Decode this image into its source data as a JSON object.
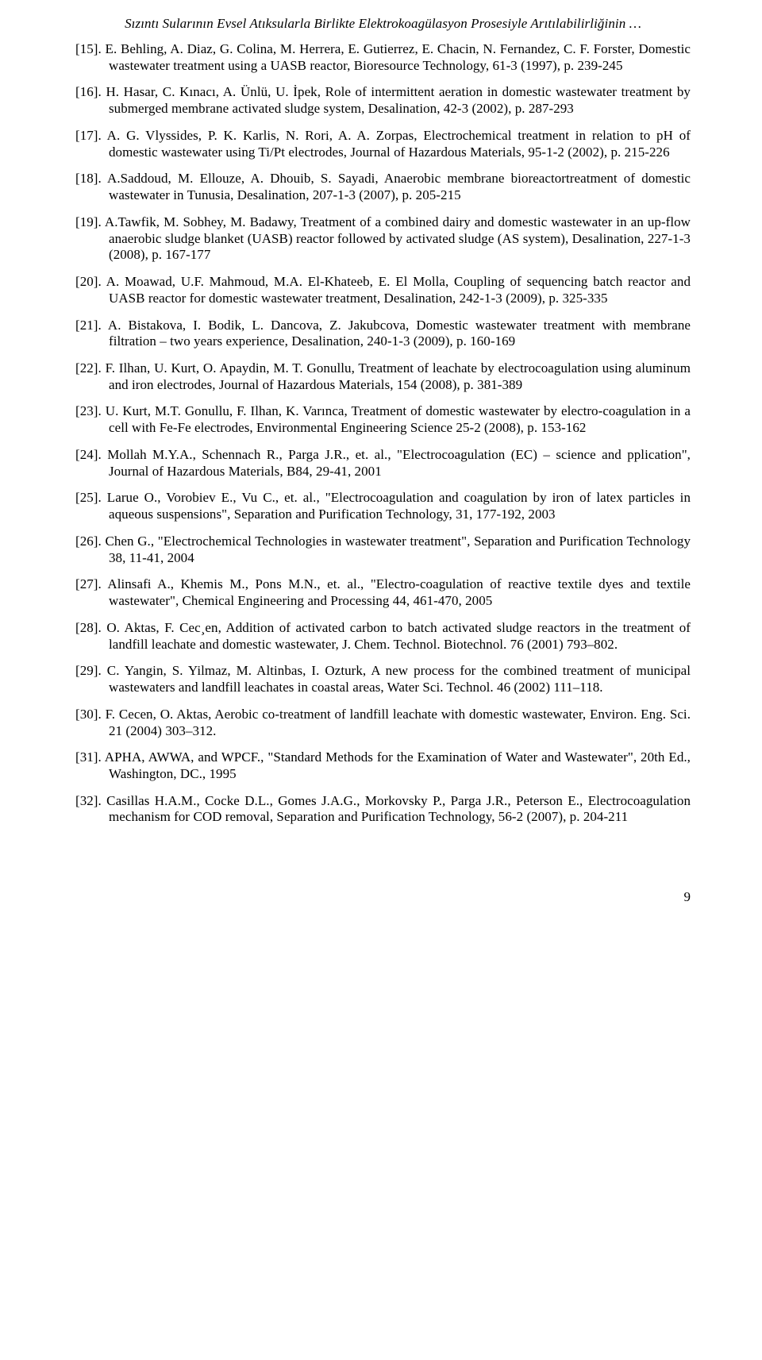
{
  "running_title": "Sızıntı Sularının Evsel Atıksularla Birlikte Elektrokoagülasyon Prosesiyle Arıtılabilirliğinin …",
  "references": [
    {
      "num": "[15].",
      "text": "E. Behling, A. Diaz, G. Colina, M. Herrera, E. Gutierrez, E. Chacin, N. Fernandez, C. F. Forster, Domestic wastewater treatment using a UASB reactor, Bioresource Technology, 61-3 (1997), p. 239-245"
    },
    {
      "num": "[16].",
      "text": "H. Hasar, C. Kınacı, A. Ünlü, U. İpek, Role of intermittent aeration in domestic wastewater treatment by submerged membrane activated sludge system, Desalination, 42-3 (2002), p. 287-293"
    },
    {
      "num": "[17].",
      "text": "A. G. Vlyssides, P. K. Karlis, N. Rori, A. A. Zorpas, Electrochemical treatment in relation to pH of domestic wastewater using Ti/Pt electrodes, Journal of Hazardous Materials, 95-1-2 (2002), p. 215-226"
    },
    {
      "num": "[18].",
      "text": "A.Saddoud, M. Ellouze, A. Dhouib, S. Sayadi, Anaerobic membrane bioreactortreatment of domestic wastewater in Tunusia, Desalination, 207-1-3 (2007), p. 205-215"
    },
    {
      "num": "[19].",
      "text": "A.Tawfik, M. Sobhey, M. Badawy,  Treatment of a combined dairy and domestic wastewater in an up-flow anaerobic sludge blanket (UASB) reactor followed by activated sludge (AS system), Desalination, 227-1-3 (2008), p. 167-177"
    },
    {
      "num": "[20].",
      "text": "A. Moawad, U.F. Mahmoud, M.A. El-Khateeb, E. El Molla, Coupling of sequencing batch reactor and UASB reactor for domestic wastewater treatment, Desalination,  242-1-3 (2009), p. 325-335"
    },
    {
      "num": "[21].",
      "text": "A. Bistakova, I. Bodik, L. Dancova, Z. Jakubcova, Domestic wastewater treatment with membrane filtration – two years experience, Desalination, 240-1-3 (2009), p. 160-169"
    },
    {
      "num": "[22].",
      "text": "F. Ilhan, U. Kurt, O. Apaydin, M. T. Gonullu, Treatment of leachate by electrocoagulation using aluminum and iron electrodes, Journal of Hazardous Materials, 154 (2008), p. 381-389"
    },
    {
      "num": "[23].",
      "text": "U. Kurt, M.T. Gonullu, F. Ilhan, K. Varınca, Treatment of domestic wastewater by electro-coagulation in a cell with Fe-Fe electrodes, Environmental Engineering Science 25-2 (2008), p. 153-162"
    },
    {
      "num": "[24].",
      "text": "Mollah M.Y.A., Schennach R., Parga J.R., et. al., \"Electrocoagulation (EC) – science and pplication\", Journal of Hazardous Materials, B84, 29-41, 2001"
    },
    {
      "num": "[25].",
      "text": "Larue O., Vorobiev E., Vu C., et. al., \"Electrocoagulation and coagulation by iron of latex particles in aqueous suspensions\", Separation and Purification Technology, 31, 177-192, 2003"
    },
    {
      "num": "[26].",
      "text": "Chen G., \"Electrochemical Technologies in wastewater treatment\", Separation and Purification Technology 38, 11-41, 2004"
    },
    {
      "num": "[27].",
      "text": "Alinsafi A., Khemis M., Pons M.N., et. al., \"Electro-coagulation of reactive textile dyes and textile wastewater\", Chemical Engineering and Processing 44, 461-470, 2005"
    },
    {
      "num": "[28].",
      "text": "O. Aktas, F. Cec¸en, Addition of activated carbon to batch activated sludge reactors in the treatment of landfill leachate and domestic wastewater, J. Chem. Technol. Biotechnol. 76 (2001) 793–802."
    },
    {
      "num": "[29].",
      "text": "C. Yangin, S. Yilmaz, M. Altinbas, I. Ozturk, A new process for the combined treatment of municipal wastewaters and landfill leachates in coastal areas, Water Sci. Technol. 46 (2002) 111–118."
    },
    {
      "num": "[30].",
      "text": "F. Cecen, O. Aktas, Aerobic co-treatment of landfill leachate with domestic wastewater, Environ. Eng. Sci. 21 (2004) 303–312."
    },
    {
      "num": "[31].",
      "text": "APHA, AWWA, and WPCF., \"Standard Methods for the Examination of Water and Wastewater\", 20th Ed., Washington, DC., 1995"
    },
    {
      "num": "[32].",
      "text": "Casillas H.A.M., Cocke D.L., Gomes J.A.G., Morkovsky P., Parga J.R., Peterson E., Electrocoagulation mechanism for COD removal, Separation and Purification Technology, 56-2 (2007), p. 204-211"
    }
  ],
  "page_number": "9"
}
